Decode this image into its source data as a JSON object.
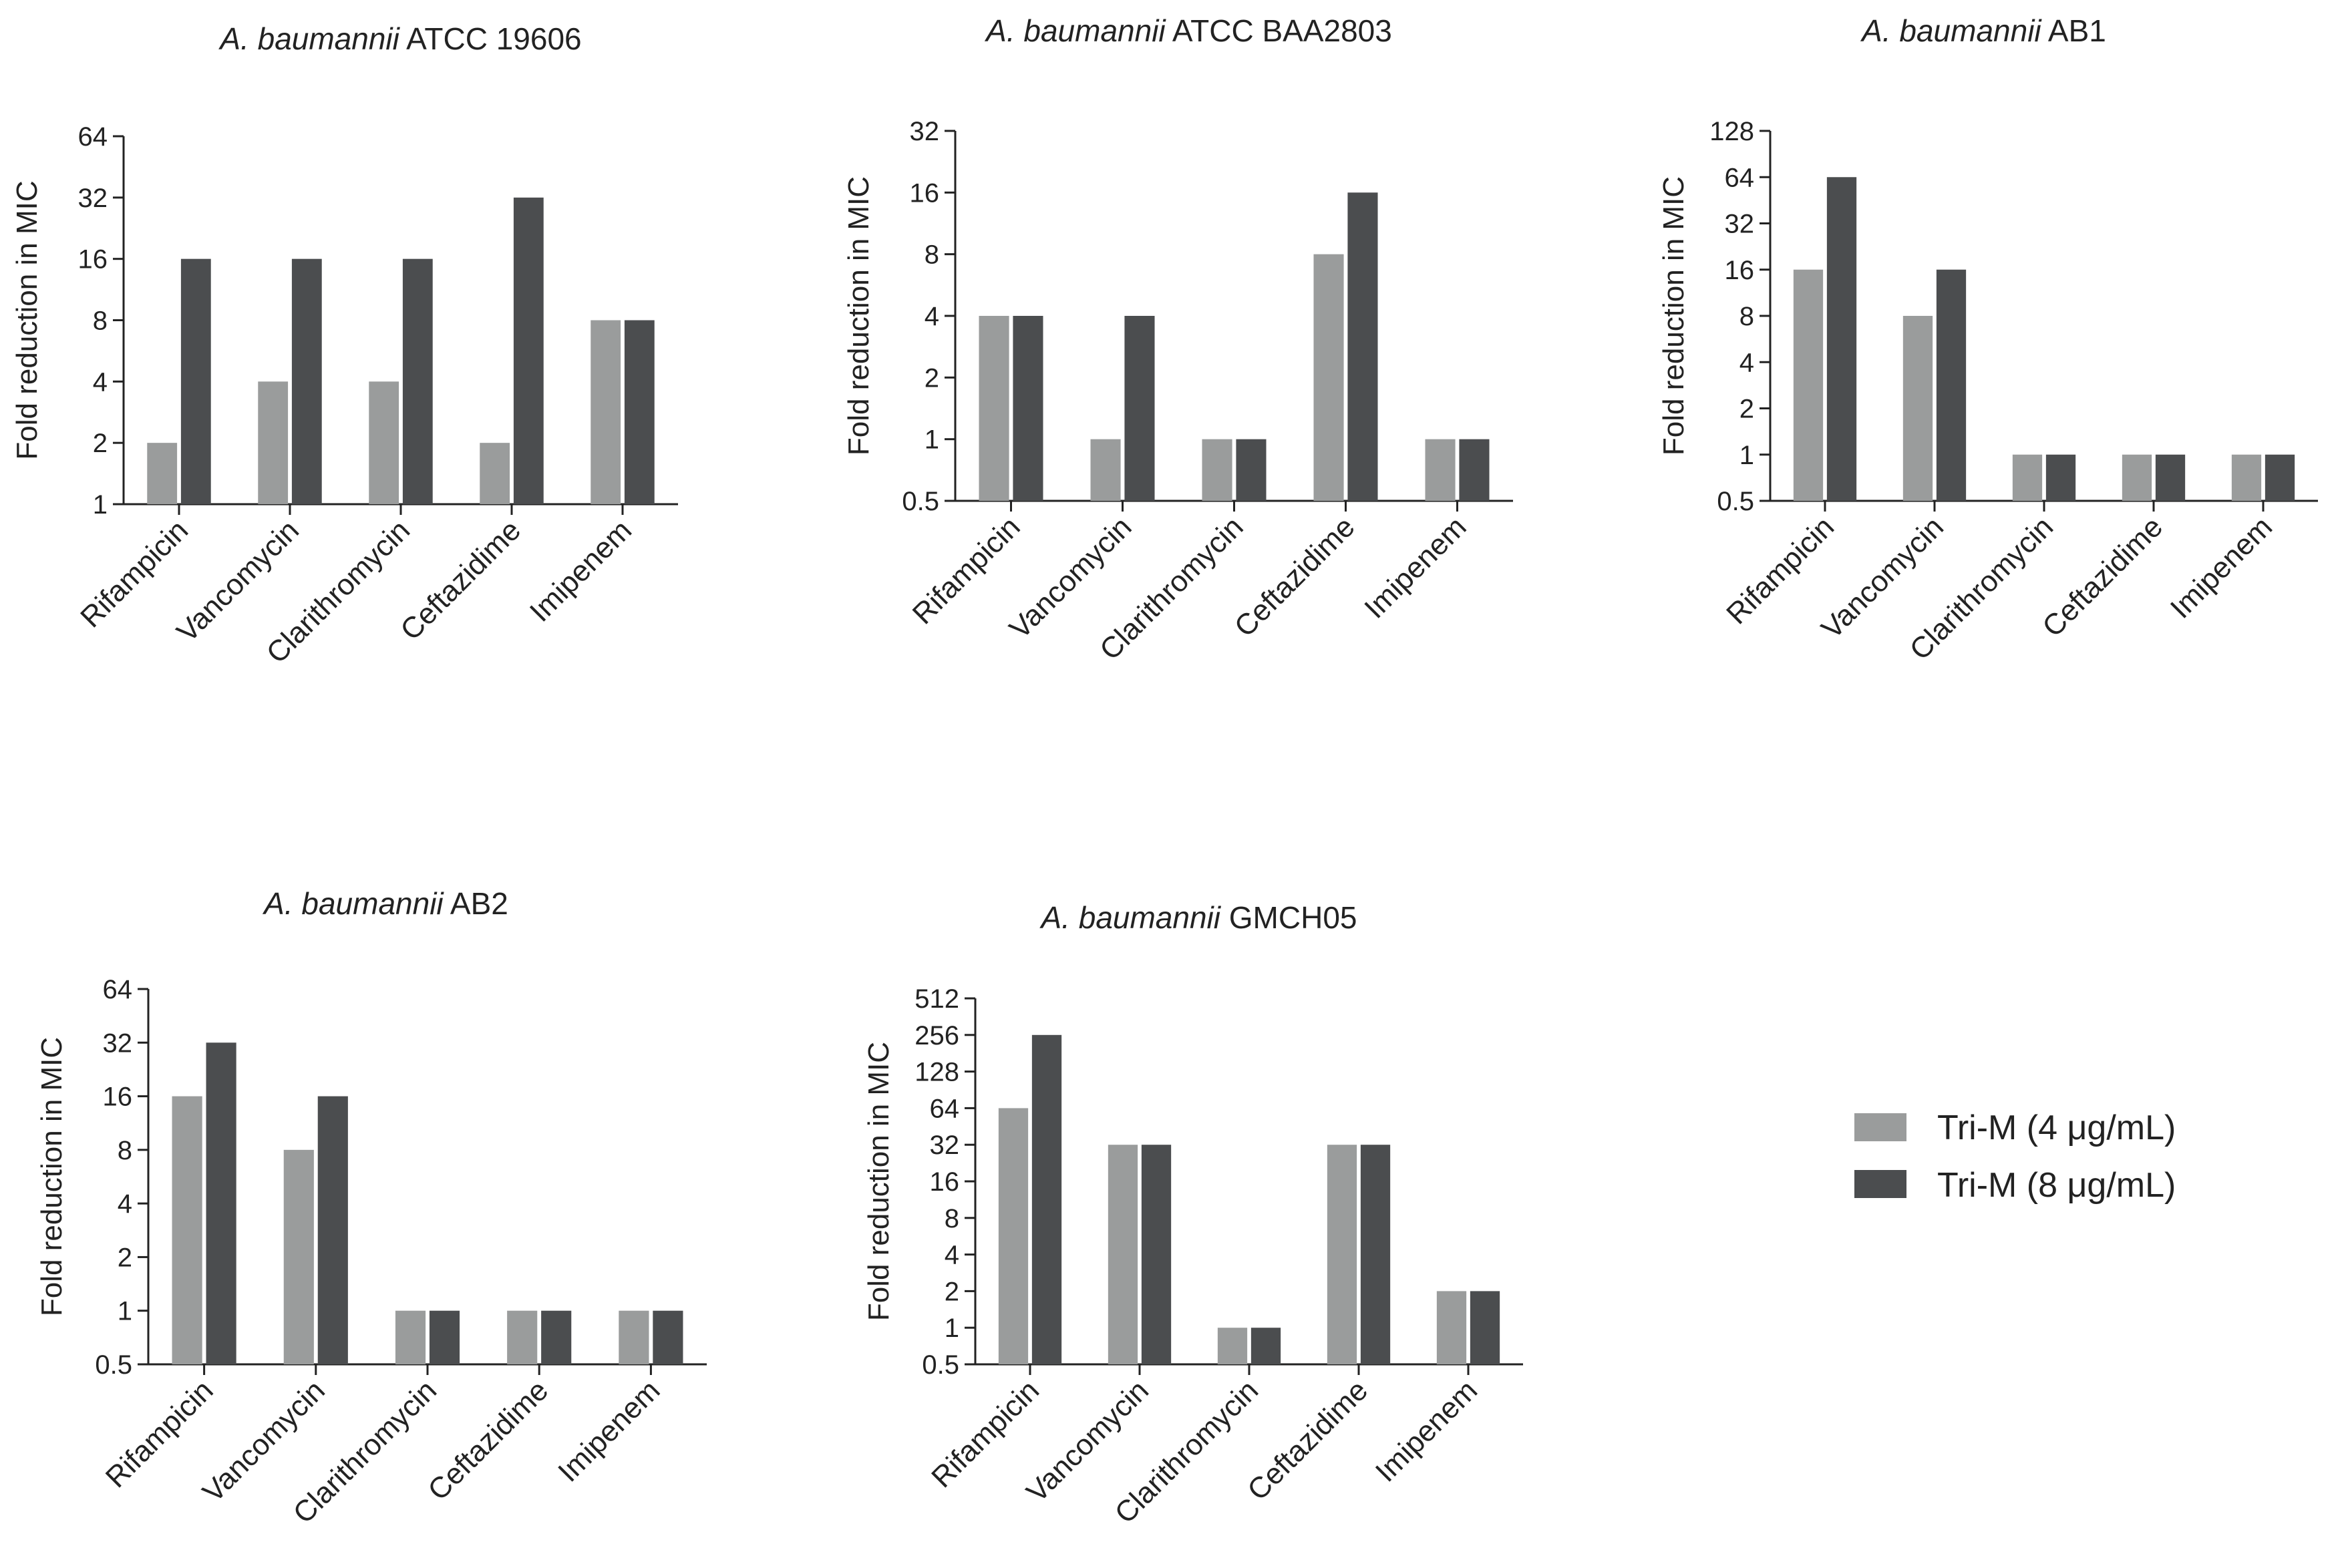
{
  "chart_data": [
    {
      "type": "bar",
      "title_italic": "A. baumannii",
      "title_rest": "ATCC 19606",
      "ylabel": "Fold reduction in MIC",
      "yscale": "log2",
      "ylim": [
        1,
        64
      ],
      "yticks": [
        "1",
        "2",
        "4",
        "8",
        "16",
        "32",
        "64"
      ],
      "categories": [
        "Rifampicin",
        "Vancomycin",
        "Clarithromycin",
        "Ceftazidime",
        "Imipenem"
      ],
      "series": [
        {
          "name": "Tri-M (4 μg/mL)",
          "values": [
            2,
            4,
            4,
            2,
            8
          ]
        },
        {
          "name": "Tri-M (8 μg/mL)",
          "values": [
            16,
            16,
            16,
            32,
            8
          ]
        }
      ]
    },
    {
      "type": "bar",
      "title_italic": "A. baumannii",
      "title_rest": "ATCC BAA2803",
      "ylabel": "Fold reduction in MIC",
      "yscale": "log2",
      "ylim": [
        0.5,
        32
      ],
      "yticks": [
        "0.5",
        "1",
        "2",
        "4",
        "8",
        "16",
        "32"
      ],
      "categories": [
        "Rifampicin",
        "Vancomycin",
        "Clarithromycin",
        "Ceftazidime",
        "Imipenem"
      ],
      "series": [
        {
          "name": "Tri-M (4 μg/mL)",
          "values": [
            4,
            1,
            1,
            8,
            1
          ]
        },
        {
          "name": "Tri-M (8 μg/mL)",
          "values": [
            4,
            4,
            1,
            16,
            1
          ]
        }
      ]
    },
    {
      "type": "bar",
      "title_italic": "A. baumannii",
      "title_rest": "AB1",
      "ylabel": "Fold reduction in MIC",
      "yscale": "log2",
      "ylim": [
        0.5,
        128
      ],
      "yticks": [
        "0.5",
        "1",
        "2",
        "4",
        "8",
        "16",
        "32",
        "64",
        "128"
      ],
      "categories": [
        "Rifampicin",
        "Vancomycin",
        "Clarithromycin",
        "Ceftazidime",
        "Imipenem"
      ],
      "series": [
        {
          "name": "Tri-M (4 μg/mL)",
          "values": [
            16,
            8,
            1,
            1,
            1
          ]
        },
        {
          "name": "Tri-M (8 μg/mL)",
          "values": [
            64,
            16,
            1,
            1,
            1
          ]
        }
      ]
    },
    {
      "type": "bar",
      "title_italic": "A. baumannii",
      "title_rest": "AB2",
      "ylabel": "Fold reduction in MIC",
      "yscale": "log2",
      "ylim": [
        0.5,
        64
      ],
      "yticks": [
        "0.5",
        "1",
        "2",
        "4",
        "8",
        "16",
        "32",
        "64"
      ],
      "categories": [
        "Rifampicin",
        "Vancomycin",
        "Clarithromycin",
        "Ceftazidime",
        "Imipenem"
      ],
      "series": [
        {
          "name": "Tri-M (4 μg/mL)",
          "values": [
            16,
            8,
            1,
            1,
            1
          ]
        },
        {
          "name": "Tri-M (8 μg/mL)",
          "values": [
            32,
            16,
            1,
            1,
            1
          ]
        }
      ]
    },
    {
      "type": "bar",
      "title_italic": "A. baumannii",
      "title_rest": "GMCH05",
      "ylabel": "Fold reduction in MIC",
      "yscale": "log2",
      "ylim": [
        0.5,
        512
      ],
      "yticks": [
        "0.5",
        "1",
        "2",
        "4",
        "8",
        "16",
        "32",
        "64",
        "128",
        "256",
        "512"
      ],
      "categories": [
        "Rifampicin",
        "Vancomycin",
        "Clarithromycin",
        "Ceftazidime",
        "Imipenem"
      ],
      "series": [
        {
          "name": "Tri-M (4 μg/mL)",
          "values": [
            64,
            32,
            1,
            32,
            2
          ]
        },
        {
          "name": "Tri-M (8 μg/mL)",
          "values": [
            256,
            32,
            1,
            32,
            2
          ]
        }
      ]
    }
  ],
  "legend": {
    "position": "right",
    "items": [
      {
        "label": "Tri-M (4 μg/mL)",
        "color": "#9a9c9c"
      },
      {
        "label": "Tri-M (8 μg/mL)",
        "color": "#4b4d4f"
      }
    ]
  },
  "colors": {
    "series_light": "#9a9c9c",
    "series_dark": "#4b4d4f",
    "axis": "#222222"
  }
}
